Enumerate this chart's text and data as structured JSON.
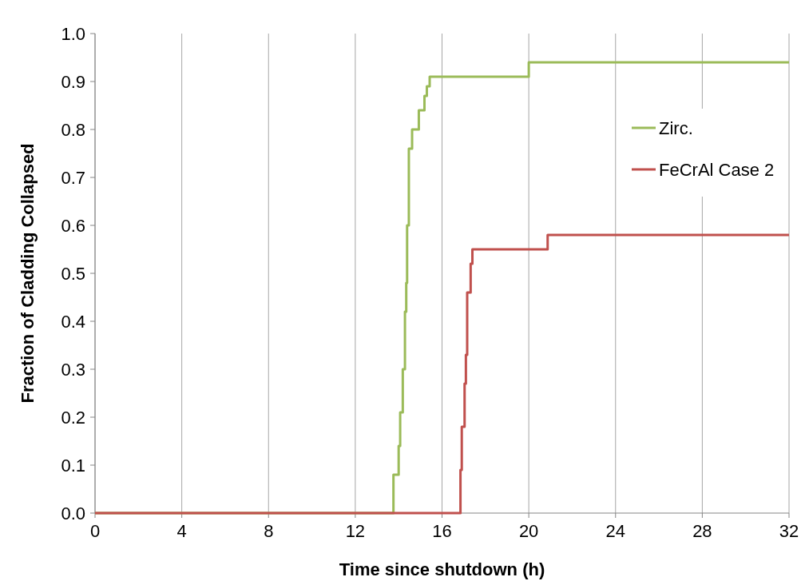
{
  "chart_data": {
    "type": "step",
    "xlabel": "Time since shutdown (h)",
    "ylabel": "Fraction of Cladding Collapsed",
    "xlim": [
      0,
      32
    ],
    "xticks": [
      0,
      4,
      8,
      12,
      16,
      20,
      24,
      28,
      32
    ],
    "ylim": [
      0,
      1
    ],
    "yticks": [
      {
        "value": 0,
        "label": "0.0"
      },
      {
        "value": 0.1,
        "label": "0.1"
      },
      {
        "value": 0.2,
        "label": "0.2"
      },
      {
        "value": 0.3,
        "label": "0.3"
      },
      {
        "value": 0.4,
        "label": "0.4"
      },
      {
        "value": 0.5,
        "label": "0.5"
      },
      {
        "value": 0.6,
        "label": "0.6"
      },
      {
        "value": 0.7,
        "label": "0.7"
      },
      {
        "value": 0.8,
        "label": "0.8"
      },
      {
        "value": 0.9,
        "label": "0.9"
      },
      {
        "value": 1,
        "label": "1.0"
      }
    ],
    "grid": "x",
    "legend": "right",
    "series": [
      {
        "name": "Zirc.",
        "color": "#9bbb59",
        "x": [
          0,
          13.76,
          14.0,
          14.07,
          14.19,
          14.29,
          14.35,
          14.39,
          14.47,
          14.62,
          14.93,
          15.19,
          15.3,
          15.43,
          20,
          32
        ],
        "values": [
          0,
          0.08,
          0.14,
          0.21,
          0.3,
          0.42,
          0.48,
          0.6,
          0.76,
          0.8,
          0.84,
          0.87,
          0.89,
          0.91,
          0.94,
          0.94
        ]
      },
      {
        "name": "FeCrAl Case 2",
        "color": "#c0504d",
        "x": [
          0,
          16.85,
          16.91,
          17.04,
          17.1,
          17.16,
          17.32,
          17.4,
          20.87,
          32
        ],
        "values": [
          0,
          0.09,
          0.18,
          0.27,
          0.33,
          0.46,
          0.52,
          0.55,
          0.58,
          0.58
        ]
      }
    ]
  }
}
